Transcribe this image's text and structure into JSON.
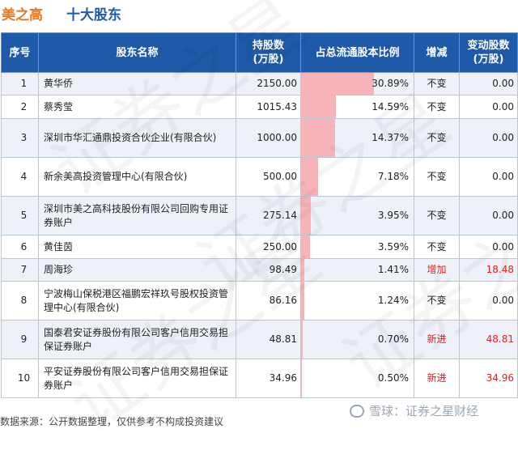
{
  "header": {
    "company": "美之高",
    "title": "十大股东"
  },
  "table": {
    "columns": [
      "序号",
      "股东名称",
      "持股数\n(万股)",
      "占总流通股本比例",
      "增减",
      "变动股数\n(万股)"
    ],
    "rows": [
      {
        "idx": "1",
        "name": "黄华侨",
        "shares": "2150.00",
        "ratio": "30.89%",
        "ratio_value": 30.89,
        "change": "不变",
        "delta": "0.00",
        "highlight": false
      },
      {
        "idx": "2",
        "name": "蔡秀莹",
        "shares": "1015.43",
        "ratio": "14.59%",
        "ratio_value": 14.59,
        "change": "不变",
        "delta": "0.00",
        "highlight": false
      },
      {
        "idx": "3",
        "name": "深圳市华汇通鼎投资合伙企业(有限合伙)",
        "shares": "1000.00",
        "ratio": "14.37%",
        "ratio_value": 14.37,
        "change": "不变",
        "delta": "0.00",
        "highlight": false
      },
      {
        "idx": "4",
        "name": "新余美高投资管理中心(有限合伙)",
        "shares": "500.00",
        "ratio": "7.18%",
        "ratio_value": 7.18,
        "change": "不变",
        "delta": "0.00",
        "highlight": false
      },
      {
        "idx": "5",
        "name": "深圳市美之高科技股份有限公司回购专用证券账户",
        "shares": "275.14",
        "ratio": "3.95%",
        "ratio_value": 3.95,
        "change": "不变",
        "delta": "0.00",
        "highlight": false
      },
      {
        "idx": "6",
        "name": "黄佳茵",
        "shares": "250.00",
        "ratio": "3.59%",
        "ratio_value": 3.59,
        "change": "不变",
        "delta": "0.00",
        "highlight": false
      },
      {
        "idx": "7",
        "name": "周海珍",
        "shares": "98.49",
        "ratio": "1.41%",
        "ratio_value": 1.41,
        "change": "增加",
        "delta": "18.48",
        "highlight": true
      },
      {
        "idx": "8",
        "name": "宁波梅山保税港区福鹏宏祥玖号股权投资管理中心(有限合伙)",
        "shares": "86.16",
        "ratio": "1.24%",
        "ratio_value": 1.24,
        "change": "不变",
        "delta": "0.00",
        "highlight": false
      },
      {
        "idx": "9",
        "name": "国泰君安证券股份有限公司客户信用交易担保证券账户",
        "shares": "48.81",
        "ratio": "0.70%",
        "ratio_value": 0.7,
        "change": "新进",
        "delta": "48.81",
        "highlight": true
      },
      {
        "idx": "10",
        "name": "平安证券股份有限公司客户信用交易担保证券账户",
        "shares": "34.96",
        "ratio": "0.50%",
        "ratio_value": 0.5,
        "change": "新进",
        "delta": "34.96",
        "highlight": true
      }
    ]
  },
  "footer": {
    "source": "数据来源：公开数据整理，仅供参考不构成投资建议"
  },
  "logo": {
    "text": "雪球：证券之星财经"
  },
  "watermark": "证券之星",
  "colors": {
    "header_bg": "#1e5aa8",
    "company": "#e8771e",
    "title": "#1e5aa8",
    "bar": "#f7b3b7",
    "increase": "#e02020"
  }
}
